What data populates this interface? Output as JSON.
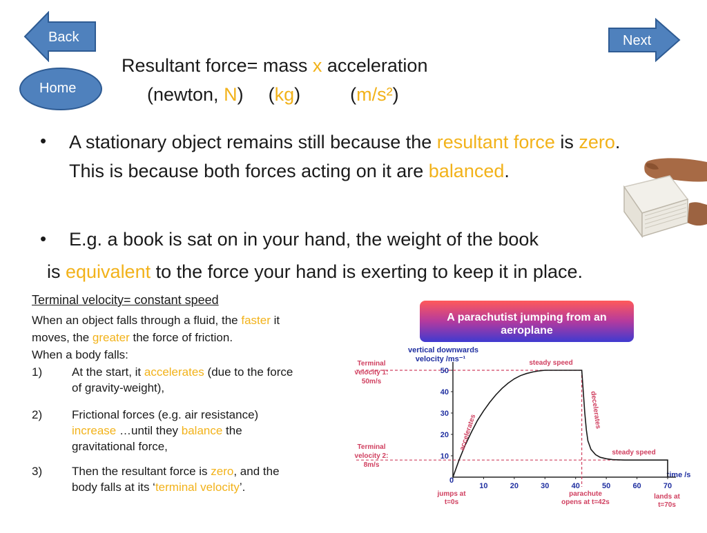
{
  "nav": {
    "back_label": "Back",
    "next_label": "Next",
    "home_label": "Home"
  },
  "colors": {
    "nav_fill": "#4f81bd",
    "nav_stroke": "#2e5b93",
    "highlight": "#f2b21a",
    "banner_top": "#ff5a5a",
    "banner_bottom": "#3f3ad0",
    "dash": "#d04060"
  },
  "formula": {
    "line1": {
      "a": "Resultant force= mass ",
      "b": "x",
      "c": " acceleration"
    },
    "line2": {
      "a": "(newton, ",
      "b": "N",
      "c": ")",
      "d": "(",
      "e": "kg",
      "f": ")",
      "g": "(",
      "h": "m/s²",
      "i": ")"
    }
  },
  "bullets": {
    "b1": {
      "a": "A stationary object remains still because the ",
      "b": "resultant force",
      "c": " is ",
      "d": "zero",
      "e": ".",
      "f": "This is because both forces acting on it are ",
      "g": "balanced",
      "h": "."
    },
    "b2": {
      "a": "E.g. a book is sat on in your hand, the weight of the book",
      "b": "is ",
      "c": "equivalent",
      "d": " to the force your hand is exerting to keep it in place."
    }
  },
  "terminal": {
    "heading": "Terminal velocity= constant speed",
    "p1a": "When an object falls through a fluid, the ",
    "p1b": "faster",
    "p1c": " it",
    "p2a": "moves, the ",
    "p2b": "greater",
    "p2c": " the force of friction.",
    "p3": "When a body falls:",
    "i1": {
      "num": "1)",
      "a": "At the start, it ",
      "b": "accelerates",
      "c": " (due to the force",
      "d": "of gravity-weight),"
    },
    "i2": {
      "num": "2)",
      "a": "Frictional forces (e.g. air resistance)",
      "b": "increase",
      "c": " …until they ",
      "d": "balance",
      "e": " the",
      "f": "gravitational force,"
    },
    "i3": {
      "num": "3)",
      "a": "Then the resultant force is ",
      "b": "zero",
      "c": ", and the",
      "d": "body falls at its ‘",
      "e": "terminal velocity",
      "f": "’."
    }
  },
  "chart_data": {
    "type": "line",
    "title": "A parachutist jumping from an aeroplane",
    "title_line1": "A parachutist jumping from an",
    "title_line2": "aeroplane",
    "ylabel_line1": "vertical downwards",
    "ylabel_line2": "velocity /ms⁻¹",
    "xlabel": "time /s",
    "xlim": [
      0,
      70
    ],
    "ylim": [
      0,
      50
    ],
    "x_ticks": [
      0,
      10,
      20,
      30,
      40,
      50,
      60,
      70
    ],
    "y_ticks": [
      10,
      20,
      30,
      40,
      50
    ],
    "series": [
      {
        "values": [
          [
            0,
            0
          ],
          [
            2,
            8
          ],
          [
            4,
            15
          ],
          [
            6,
            21
          ],
          [
            8,
            26.5
          ],
          [
            10,
            31
          ],
          [
            12,
            35
          ],
          [
            14,
            38.5
          ],
          [
            16,
            41.5
          ],
          [
            18,
            44
          ],
          [
            20,
            46
          ],
          [
            22,
            47.5
          ],
          [
            24,
            48.5
          ],
          [
            26,
            49.2
          ],
          [
            28,
            49.7
          ],
          [
            30,
            50
          ],
          [
            42,
            50
          ],
          [
            42.5,
            40
          ],
          [
            43,
            30
          ],
          [
            43.5,
            22
          ],
          [
            44,
            17
          ],
          [
            45,
            13
          ],
          [
            46.5,
            10.5
          ],
          [
            48,
            9.3
          ],
          [
            50,
            8.6
          ],
          [
            52,
            8.2
          ],
          [
            56,
            8
          ],
          [
            70,
            8
          ],
          [
            70,
            0
          ]
        ]
      }
    ],
    "annotations": {
      "tv1": [
        "Terminal",
        "velocity 1:",
        "50m/s"
      ],
      "tv2": [
        "Terminal",
        "velocity 2:",
        "8m/s"
      ],
      "steady1": "steady speed",
      "steady2": "steady speed",
      "accelerates": "accelerates",
      "decelerates": "decelerates",
      "jumps": [
        "jumps at",
        "t=0s"
      ],
      "parachute": [
        "parachute",
        "opens at t=42s"
      ],
      "lands": [
        "lands at",
        "t=70s"
      ]
    }
  }
}
